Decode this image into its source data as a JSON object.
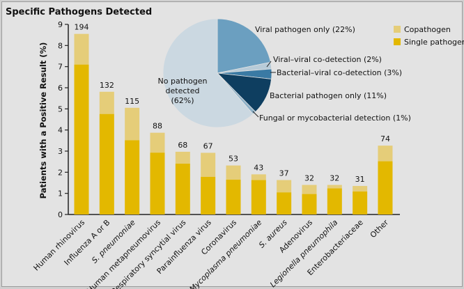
{
  "chart_data": [
    {
      "type": "bar",
      "stacked": true,
      "title": "Specific Pathogens Detected",
      "xlabel": "",
      "ylabel": "Patients with a Positive Result (%)",
      "ylim": [
        0,
        9
      ],
      "yticks": [
        "0",
        "1",
        "2",
        "3",
        "4",
        "5",
        "6",
        "7",
        "8",
        "9"
      ],
      "grid": false,
      "legend_position": "top-right",
      "categories": [
        "Human rhinovirus",
        "Influenza A or B",
        "S. pneumoniae",
        "Human metapneumovirus",
        "Respiratory syncytial virus",
        "Parainfluenza virus",
        "Coronavirus",
        "Mycoplasma pneumoniae",
        "S. aureus",
        "Adenovirus",
        "Legionella pneumophila",
        "Enterobacteriaceae",
        "Other"
      ],
      "italic_categories": [
        "S. pneumoniae",
        "Mycoplasma pneumoniae",
        "S. aureus",
        "Legionella pneumophila"
      ],
      "count_labels": [
        "194",
        "132",
        "115",
        "88",
        "68",
        "67",
        "53",
        "43",
        "37",
        "32",
        "32",
        "31",
        "74"
      ],
      "series": [
        {
          "name": "Single pathogen",
          "color": "#e3b800",
          "values": [
            7.1,
            4.76,
            3.52,
            2.93,
            2.41,
            1.78,
            1.65,
            1.63,
            1.05,
            0.97,
            1.24,
            1.09,
            2.52
          ]
        },
        {
          "name": "Copathogen",
          "color": "#e5cd79",
          "values": [
            1.45,
            1.05,
            1.53,
            0.94,
            0.56,
            1.14,
            0.67,
            0.27,
            0.58,
            0.43,
            0.16,
            0.26,
            0.74
          ]
        }
      ]
    },
    {
      "type": "pie",
      "start": "top",
      "direction": "clockwise",
      "slices": [
        {
          "label": "Viral pathogen only (22%)",
          "value": 22,
          "color": "#6b9fc0"
        },
        {
          "label": "Viral–viral co-detection (2%)",
          "value": 2,
          "color": "#b7cbd8"
        },
        {
          "label": "Bacterial–viral co-detection (3%)",
          "value": 3,
          "color": "#3a7aa4"
        },
        {
          "label": "Bacterial pathogen only (11%)",
          "value": 11,
          "color": "#0e3e60"
        },
        {
          "label": "Fungal or mycobacterial detection (1%)",
          "value": 1,
          "color": "#8db1c8"
        },
        {
          "label": "No pathogen detected (62%)",
          "label_lines": [
            "No pathogen",
            "detected",
            "(62%)"
          ],
          "value": 62,
          "color": "#cbd8e1"
        }
      ]
    }
  ]
}
